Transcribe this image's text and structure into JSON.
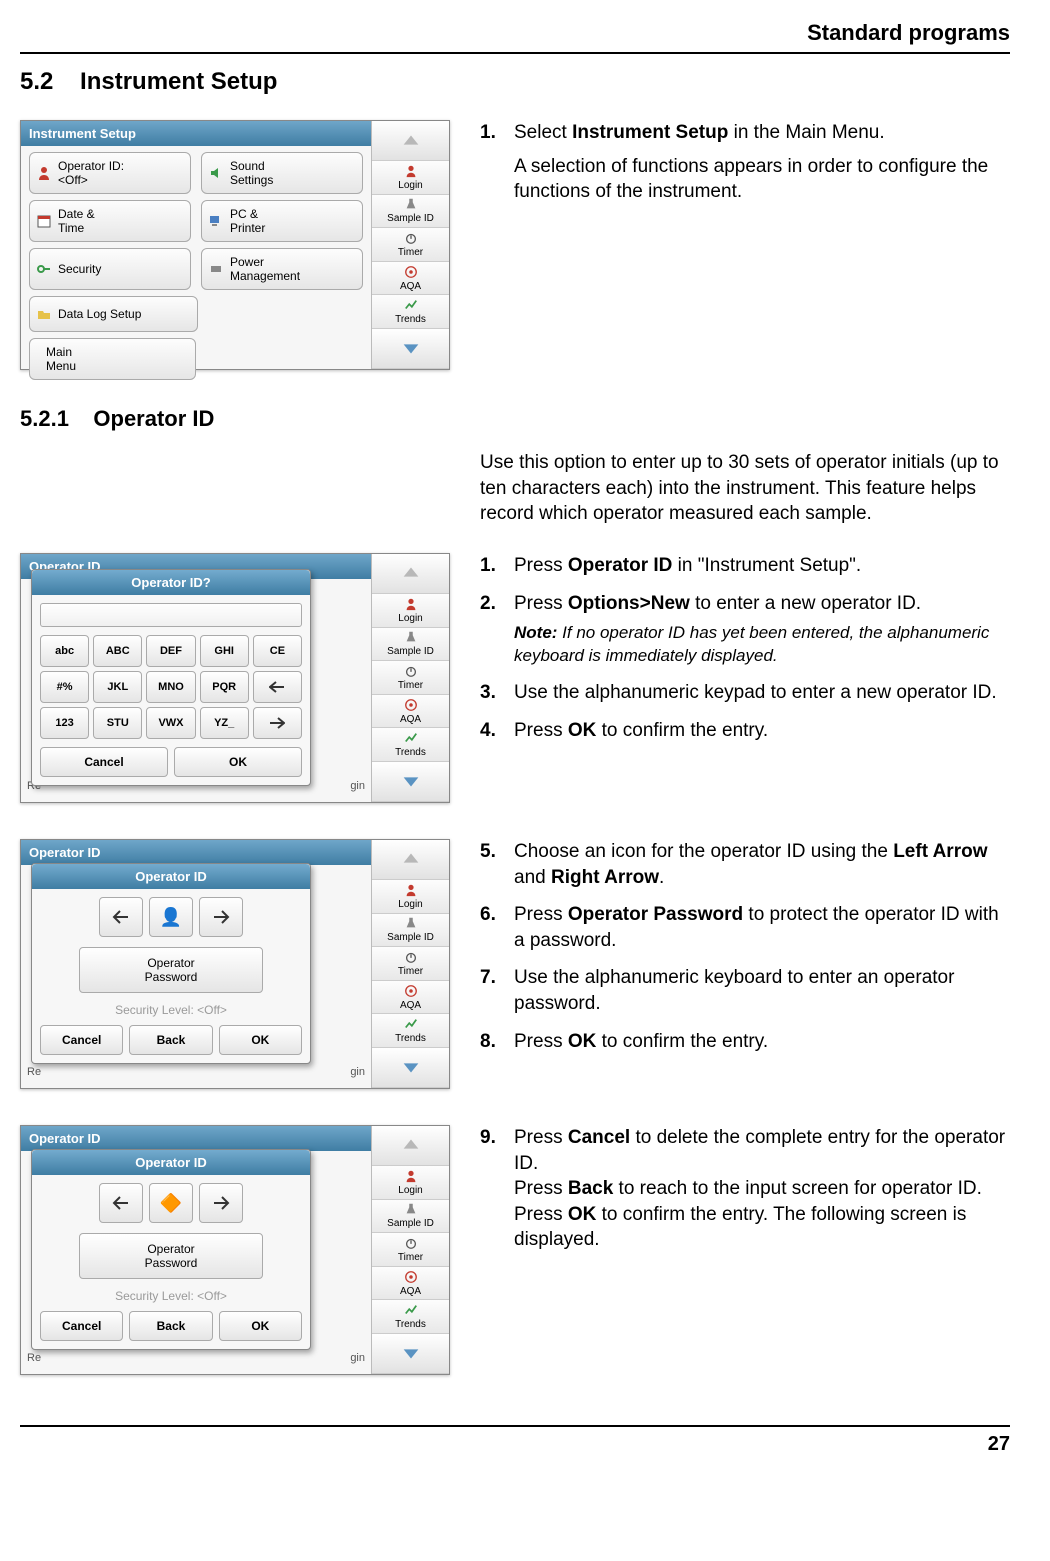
{
  "header": {
    "chapter": "Standard programs",
    "page_number": "27"
  },
  "section": {
    "num": "5.2",
    "title": "Instrument Setup"
  },
  "subsection": {
    "num": "5.2.1",
    "title": "Operator ID"
  },
  "side": {
    "login": "Login",
    "sample": "Sample ID",
    "timer": "Timer",
    "aqa": "AQA",
    "trends": "Trends"
  },
  "screen1": {
    "title": "Instrument Setup",
    "buttons": {
      "operator": "Operator ID:\n<Off>",
      "sound": "Sound\nSettings",
      "datetime": "Date &\nTime",
      "pcprint": "PC &\nPrinter",
      "security": "Security",
      "power": "Power\nManagement",
      "datalog": "Data Log Setup"
    },
    "main_menu": "Main\nMenu"
  },
  "step1": {
    "lead": "Select ",
    "bold": "Instrument Setup",
    "tail": " in the Main Menu.",
    "para": "A selection of functions appears in order to configure the functions of the instrument."
  },
  "intro521": "Use this option to enter up to 30 sets of operator initials (up to ten characters each) into the instrument. This feature helps record which operator measured each sample.",
  "screen2": {
    "title": "Operator ID?",
    "keys": [
      "abc",
      "ABC",
      "DEF",
      "GHI",
      "CE",
      "#%",
      "JKL",
      "MNO",
      "PQR",
      "←",
      "123",
      "STU",
      "VWX",
      "YZ_",
      "→"
    ],
    "cancel": "Cancel",
    "ok": "OK",
    "behind_left": "Re",
    "behind_right": "gin"
  },
  "steps2": {
    "s1_lead": "Press ",
    "s1_bold": "Operator ID",
    "s1_tail": " in \"Instrument Setup\".",
    "s2_lead": "Press ",
    "s2_bold": "Options>New",
    "s2_tail": " to enter a new operator ID.",
    "note_lead": "Note:",
    "note_body": " If no operator ID has yet been entered, the alphanumeric keyboard is immediately displayed.",
    "s3": "Use the alphanumeric keypad to enter a new operator ID.",
    "s4_lead": "Press ",
    "s4_bold": "OK",
    "s4_tail": " to confirm the entry."
  },
  "screen3": {
    "title": "Operator ID",
    "icon_glyph": "👤",
    "op_pass": "Operator\nPassword",
    "sec": "Security Level:   <Off>",
    "cancel": "Cancel",
    "back": "Back",
    "ok": "OK",
    "behind_left": "Re",
    "behind_right": "gin"
  },
  "steps3": {
    "s5_a": "Choose an icon for the operator ID using the ",
    "s5_b1": "Left Arrow",
    "s5_mid": " and ",
    "s5_b2": "Right Arrow",
    "s5_end": ".",
    "s6_lead": "Press ",
    "s6_bold": "Operator Password",
    "s6_tail": " to protect the operator ID with a password.",
    "s7": "Use the alphanumeric keyboard to enter an operator password.",
    "s8_lead": "Press ",
    "s8_bold": "OK",
    "s8_tail": " to confirm the entry."
  },
  "screen4": {
    "icon_glyph": "🔶"
  },
  "steps4": {
    "s9_a": "Press ",
    "s9_b1": "Cancel",
    "s9_c": " to delete the complete entry for the operator ID.",
    "s9_d": "Press ",
    "s9_b2": "Back",
    "s9_e": " to reach to the input screen for operator ID.",
    "s9_f": "Press ",
    "s9_b3": "OK",
    "s9_g": " to confirm the entry. The following screen is displayed."
  },
  "colors": {
    "titlebar_grad_top": "#6fa6c9",
    "titlebar_grad_bot": "#3f7da3",
    "button_grad_top": "#fdfdfd",
    "button_grad_bot": "#e6e6e6",
    "border": "#aaaaaa",
    "arrow_up": "#b8b8b8",
    "arrow_down": "#5a93c2",
    "login_red": "#c33a2e",
    "aqa_red": "#c33a2e",
    "trends_green": "#3a9a4a"
  }
}
